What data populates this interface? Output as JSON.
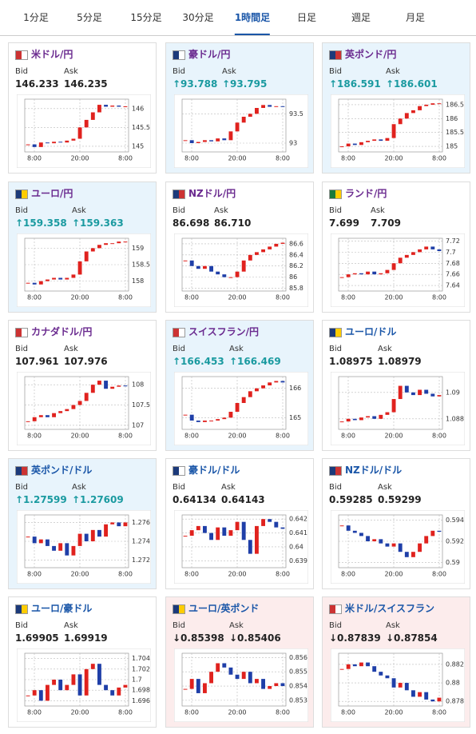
{
  "tabs": [
    "1分足",
    "5分足",
    "15分足",
    "30分足",
    "1時間足",
    "日足",
    "週足",
    "月足"
  ],
  "active_tab": 4,
  "bid_label": "Bid",
  "ask_label": "Ask",
  "cards": [
    {
      "name": "米ドル/円",
      "bid": "146.233",
      "ask": "146.235",
      "bg": "#ffffff",
      "name_color": "#6a2a8f",
      "chart": {
        "type": "candlestick",
        "ylim": [
          144.85,
          146.25
        ],
        "yticks": [
          145,
          145.5,
          146
        ],
        "xticks": [
          "8:00",
          "20:00",
          "8:00"
        ],
        "values": [
          145.05,
          144.98,
          145.1,
          145.08,
          145.12,
          145.1,
          145.15,
          145.2,
          145.5,
          145.7,
          145.9,
          146.1,
          146.05,
          146.08,
          146.05,
          146.06
        ]
      }
    },
    {
      "name": "豪ドル/円",
      "bid": "↑93.788",
      "ask": "↑93.795",
      "bg": "#e8f4fc",
      "name_color": "#6a2a8f",
      "chart": {
        "type": "candlestick",
        "ylim": [
          92.85,
          93.75
        ],
        "yticks": [
          93,
          93.5
        ],
        "xticks": [
          "8:00",
          "20:00",
          "8:00"
        ],
        "values": [
          93.05,
          93.0,
          93.02,
          93.05,
          93.03,
          93.08,
          93.05,
          93.2,
          93.35,
          93.45,
          93.5,
          93.6,
          93.65,
          93.62,
          93.63,
          93.62
        ]
      }
    },
    {
      "name": "英ポンド/円",
      "bid": "↑186.591",
      "ask": "↑186.601",
      "bg": "#e8f4fc",
      "name_color": "#6a2a8f",
      "chart": {
        "type": "candlestick",
        "ylim": [
          184.8,
          186.7
        ],
        "yticks": [
          185,
          185.5,
          186,
          186.5
        ],
        "xticks": [
          "8:00",
          "20:00",
          "8:00"
        ],
        "values": [
          185.0,
          185.1,
          185.05,
          185.15,
          185.2,
          185.25,
          185.2,
          185.3,
          185.8,
          186.0,
          186.2,
          186.3,
          186.45,
          186.5,
          186.55,
          186.55
        ]
      }
    },
    {
      "name": "ユーロ/円",
      "bid": "↑159.358",
      "ask": "↑159.363",
      "bg": "#e8f4fc",
      "name_color": "#6a2a8f",
      "chart": {
        "type": "candlestick",
        "ylim": [
          157.7,
          159.3
        ],
        "yticks": [
          158,
          158.5,
          159
        ],
        "xticks": [
          "8:00",
          "20:00",
          "8:00"
        ],
        "values": [
          157.95,
          157.9,
          158.0,
          158.05,
          158.1,
          158.05,
          158.1,
          158.2,
          158.6,
          158.9,
          159.0,
          159.1,
          159.15,
          159.15,
          159.2,
          159.2
        ]
      }
    },
    {
      "name": "NZドル/円",
      "bid": "86.698",
      "ask": "86.710",
      "bg": "#ffffff",
      "name_color": "#6a2a8f",
      "chart": {
        "type": "candlestick",
        "ylim": [
          85.75,
          86.7
        ],
        "yticks": [
          85.8,
          86,
          86.2,
          86.4,
          86.6
        ],
        "xticks": [
          "8:00",
          "20:00",
          "8:00"
        ],
        "values": [
          86.3,
          86.2,
          86.15,
          86.2,
          86.1,
          86.05,
          86.0,
          86.0,
          86.1,
          86.3,
          86.4,
          86.45,
          86.5,
          86.55,
          86.6,
          86.62
        ]
      }
    },
    {
      "name": "ランド/円",
      "bid": "7.699",
      "ask": "7.709",
      "bg": "#ffffff",
      "name_color": "#6a2a8f",
      "chart": {
        "type": "candlestick",
        "ylim": [
          7.63,
          7.725
        ],
        "yticks": [
          7.64,
          7.66,
          7.68,
          7.7,
          7.72
        ],
        "xticks": [
          "8:00",
          "20:00",
          "8:00"
        ],
        "values": [
          7.655,
          7.66,
          7.662,
          7.66,
          7.665,
          7.66,
          7.662,
          7.668,
          7.68,
          7.69,
          7.695,
          7.7,
          7.705,
          7.71,
          7.705,
          7.702
        ]
      }
    },
    {
      "name": "カナダドル/円",
      "bid": "107.961",
      "ask": "107.976",
      "bg": "#ffffff",
      "name_color": "#6a2a8f",
      "chart": {
        "type": "candlestick",
        "ylim": [
          106.9,
          108.2
        ],
        "yticks": [
          107,
          107.5,
          108
        ],
        "xticks": [
          "8:00",
          "20:00",
          "8:00"
        ],
        "values": [
          107.1,
          107.2,
          107.25,
          107.2,
          107.3,
          107.35,
          107.4,
          107.5,
          107.6,
          107.8,
          108.0,
          108.1,
          107.9,
          107.95,
          107.98,
          107.96
        ]
      }
    },
    {
      "name": "スイスフラン/円",
      "bid": "↑166.453",
      "ask": "↑166.469",
      "bg": "#e8f4fc",
      "name_color": "#6a2a8f",
      "chart": {
        "type": "candlestick",
        "ylim": [
          164.6,
          166.4
        ],
        "yticks": [
          165,
          166
        ],
        "xticks": [
          "8:00",
          "20:00",
          "8:00"
        ],
        "values": [
          165.1,
          164.9,
          164.85,
          164.9,
          164.9,
          164.95,
          165.0,
          165.2,
          165.5,
          165.7,
          165.9,
          166.0,
          166.1,
          166.2,
          166.25,
          166.2
        ]
      }
    },
    {
      "name": "ユーロ/ドル",
      "bid": "1.08975",
      "ask": "1.08979",
      "bg": "#ffffff",
      "name_color": "#1a56a8",
      "chart": {
        "type": "candlestick",
        "ylim": [
          1.0872,
          1.0912
        ],
        "yticks": [
          1.088,
          1.09
        ],
        "xticks": [
          "8:00",
          "20:00",
          "8:00"
        ],
        "values": [
          1.0878,
          1.088,
          1.0879,
          1.0881,
          1.0882,
          1.088,
          1.0883,
          1.0885,
          1.0895,
          1.0905,
          1.09,
          1.0898,
          1.0902,
          1.0899,
          1.0897,
          1.0898
        ]
      }
    },
    {
      "name": "英ポンド/ドル",
      "bid": "↑1.27599",
      "ask": "↑1.27609",
      "bg": "#e8f4fc",
      "name_color": "#1a56a8",
      "chart": {
        "type": "candlestick",
        "ylim": [
          1.2712,
          1.2768
        ],
        "yticks": [
          1.272,
          1.274,
          1.276
        ],
        "xticks": [
          "8:00",
          "20:00",
          "8:00"
        ],
        "values": [
          1.2745,
          1.2738,
          1.2742,
          1.2735,
          1.273,
          1.2738,
          1.2725,
          1.2735,
          1.2748,
          1.274,
          1.2752,
          1.2745,
          1.2758,
          1.276,
          1.2756,
          1.276
        ]
      }
    },
    {
      "name": "豪ドル/ドル",
      "bid": "0.64134",
      "ask": "0.64143",
      "bg": "#ffffff",
      "name_color": "#1a56a8",
      "chart": {
        "type": "candlestick",
        "ylim": [
          0.6385,
          0.6423
        ],
        "yticks": [
          0.639,
          0.64,
          0.641,
          0.642
        ],
        "xticks": [
          "8:00",
          "20:00",
          "8:00"
        ],
        "values": [
          0.6408,
          0.6412,
          0.6415,
          0.641,
          0.6405,
          0.6414,
          0.6408,
          0.6412,
          0.6418,
          0.6405,
          0.6395,
          0.6415,
          0.642,
          0.6418,
          0.6414,
          0.6413
        ]
      }
    },
    {
      "name": "NZドル/ドル",
      "bid": "0.59285",
      "ask": "0.59299",
      "bg": "#ffffff",
      "name_color": "#1a56a8",
      "chart": {
        "type": "candlestick",
        "ylim": [
          0.5895,
          0.5945
        ],
        "yticks": [
          0.59,
          0.592,
          0.594
        ],
        "xticks": [
          "8:00",
          "20:00",
          "8:00"
        ],
        "values": [
          0.5935,
          0.593,
          0.5928,
          0.5925,
          0.592,
          0.5922,
          0.5918,
          0.5915,
          0.5918,
          0.591,
          0.5905,
          0.591,
          0.5918,
          0.5925,
          0.593,
          0.5929
        ]
      }
    },
    {
      "name": "ユーロ/豪ドル",
      "bid": "1.69905",
      "ask": "1.69919",
      "bg": "#ffffff",
      "name_color": "#1a56a8",
      "chart": {
        "type": "candlestick",
        "ylim": [
          1.695,
          1.705
        ],
        "yticks": [
          1.696,
          1.698,
          1.7,
          1.702,
          1.704
        ],
        "xticks": [
          "8:00",
          "20:00",
          "8:00"
        ],
        "values": [
          1.697,
          1.698,
          1.696,
          1.699,
          1.7,
          1.698,
          1.699,
          1.701,
          1.697,
          1.702,
          1.703,
          1.699,
          1.698,
          1.697,
          1.6985,
          1.699
        ]
      }
    },
    {
      "name": "ユーロ/英ポンド",
      "bid": "↓0.85398",
      "ask": "↓0.85406",
      "bg": "#fcecec",
      "name_color": "#1a56a8",
      "chart": {
        "type": "candlestick",
        "ylim": [
          0.8526,
          0.8563
        ],
        "yticks": [
          0.853,
          0.854,
          0.855,
          0.856
        ],
        "xticks": [
          "8:00",
          "20:00",
          "8:00"
        ],
        "values": [
          0.8538,
          0.8545,
          0.8535,
          0.8542,
          0.855,
          0.8556,
          0.8553,
          0.8548,
          0.8545,
          0.855,
          0.8542,
          0.8545,
          0.8538,
          0.854,
          0.8542,
          0.854
        ]
      }
    },
    {
      "name": "米ドル/スイスフラン",
      "bid": "↓0.87839",
      "ask": "↓0.87854",
      "bg": "#fcecec",
      "name_color": "#1a56a8",
      "chart": {
        "type": "candlestick",
        "ylim": [
          0.8775,
          0.8832
        ],
        "yticks": [
          0.878,
          0.88,
          0.882
        ],
        "xticks": [
          "8:00",
          "20:00",
          "8:00"
        ],
        "values": [
          0.8815,
          0.882,
          0.8818,
          0.8822,
          0.8818,
          0.8812,
          0.8808,
          0.8805,
          0.8795,
          0.88,
          0.8792,
          0.8785,
          0.879,
          0.8782,
          0.878,
          0.8784
        ]
      }
    }
  ]
}
